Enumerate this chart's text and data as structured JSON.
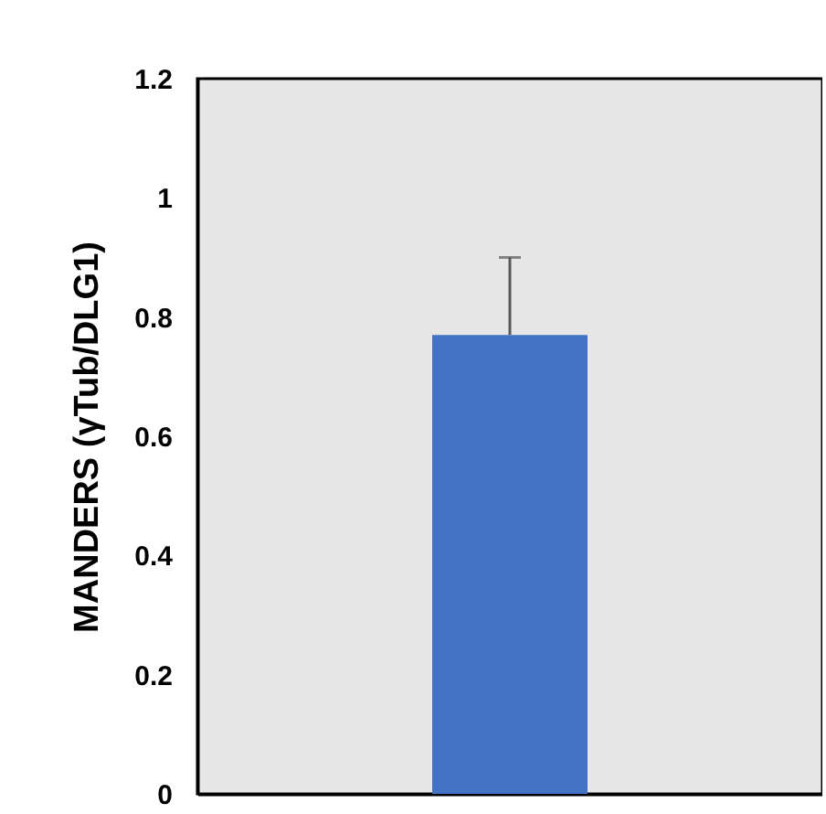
{
  "chart_data": {
    "type": "bar",
    "ylabel": "MANDERS (γTub/DLG1)",
    "categories": [
      null
    ],
    "values": [
      0.77
    ],
    "errors": [
      [
        0.77,
        0.9
      ]
    ],
    "color": "#4472c4",
    "ylim": [
      0,
      1.2
    ],
    "yticks": [
      0,
      0.2,
      0.4,
      0.6,
      0.8,
      1,
      1.2
    ],
    "tick_labels": "y",
    "grid": false
  }
}
